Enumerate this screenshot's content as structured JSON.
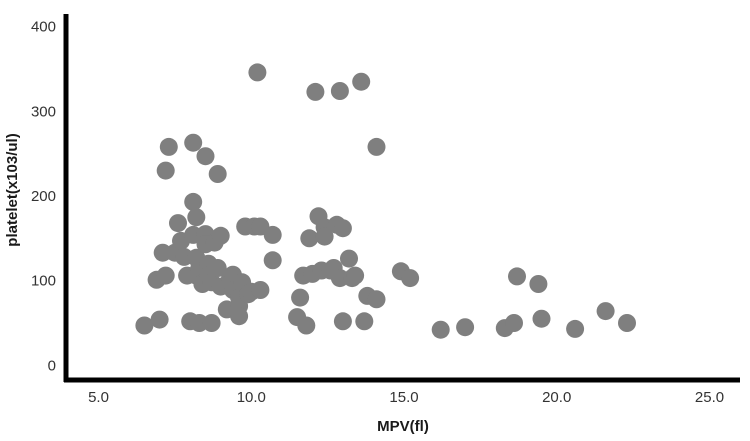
{
  "chart_data": {
    "type": "scatter",
    "xlabel": "MPV(fl)",
    "ylabel": "platelet(x103/ul)",
    "xlim": [
      4.0,
      26.0
    ],
    "ylim": [
      -15,
      415
    ],
    "x_ticks": [
      5.0,
      10.0,
      15.0,
      20.0,
      25.0
    ],
    "x_tick_labels": [
      "5.0",
      "10.0",
      "15.0",
      "20.0",
      "25.0"
    ],
    "y_ticks": [
      0,
      100,
      200,
      300,
      400
    ],
    "y_tick_labels": [
      "0",
      "100",
      "200",
      "300",
      "400"
    ],
    "grid": false,
    "legend": "none",
    "colors": {
      "point": "#7f7f7f",
      "axis": "#000000"
    },
    "points": [
      {
        "x": 6.5,
        "y": 47
      },
      {
        "x": 6.9,
        "y": 101
      },
      {
        "x": 7.0,
        "y": 54
      },
      {
        "x": 7.1,
        "y": 133
      },
      {
        "x": 7.2,
        "y": 106
      },
      {
        "x": 7.2,
        "y": 230
      },
      {
        "x": 7.3,
        "y": 258
      },
      {
        "x": 7.5,
        "y": 133
      },
      {
        "x": 7.6,
        "y": 168
      },
      {
        "x": 7.7,
        "y": 147
      },
      {
        "x": 7.8,
        "y": 128
      },
      {
        "x": 7.9,
        "y": 106
      },
      {
        "x": 8.1,
        "y": 193
      },
      {
        "x": 8.1,
        "y": 154
      },
      {
        "x": 8.1,
        "y": 263
      },
      {
        "x": 8.2,
        "y": 175
      },
      {
        "x": 8.2,
        "y": 127
      },
      {
        "x": 8.2,
        "y": 106
      },
      {
        "x": 8.3,
        "y": 115
      },
      {
        "x": 8.0,
        "y": 52
      },
      {
        "x": 8.3,
        "y": 50
      },
      {
        "x": 8.4,
        "y": 96
      },
      {
        "x": 8.5,
        "y": 155
      },
      {
        "x": 8.5,
        "y": 143
      },
      {
        "x": 8.5,
        "y": 247
      },
      {
        "x": 8.6,
        "y": 120
      },
      {
        "x": 8.6,
        "y": 106
      },
      {
        "x": 8.7,
        "y": 98
      },
      {
        "x": 8.7,
        "y": 50
      },
      {
        "x": 8.8,
        "y": 145
      },
      {
        "x": 8.9,
        "y": 115
      },
      {
        "x": 8.9,
        "y": 226
      },
      {
        "x": 9.0,
        "y": 93
      },
      {
        "x": 9.0,
        "y": 153
      },
      {
        "x": 9.2,
        "y": 66
      },
      {
        "x": 9.3,
        "y": 102
      },
      {
        "x": 9.4,
        "y": 107
      },
      {
        "x": 9.4,
        "y": 89
      },
      {
        "x": 9.6,
        "y": 80
      },
      {
        "x": 9.6,
        "y": 70
      },
      {
        "x": 9.6,
        "y": 58
      },
      {
        "x": 9.7,
        "y": 98
      },
      {
        "x": 9.8,
        "y": 164
      },
      {
        "x": 9.9,
        "y": 84
      },
      {
        "x": 10.0,
        "y": 87
      },
      {
        "x": 10.1,
        "y": 164
      },
      {
        "x": 10.2,
        "y": 346
      },
      {
        "x": 10.3,
        "y": 164
      },
      {
        "x": 10.3,
        "y": 89
      },
      {
        "x": 10.7,
        "y": 154
      },
      {
        "x": 10.7,
        "y": 124
      },
      {
        "x": 11.5,
        "y": 57
      },
      {
        "x": 11.6,
        "y": 80
      },
      {
        "x": 11.7,
        "y": 106
      },
      {
        "x": 11.8,
        "y": 47
      },
      {
        "x": 11.9,
        "y": 150
      },
      {
        "x": 12.0,
        "y": 108
      },
      {
        "x": 12.1,
        "y": 323
      },
      {
        "x": 12.2,
        "y": 176
      },
      {
        "x": 12.3,
        "y": 112
      },
      {
        "x": 12.4,
        "y": 163
      },
      {
        "x": 12.4,
        "y": 152
      },
      {
        "x": 12.6,
        "y": 112
      },
      {
        "x": 12.7,
        "y": 115
      },
      {
        "x": 12.8,
        "y": 166
      },
      {
        "x": 12.9,
        "y": 103
      },
      {
        "x": 13.0,
        "y": 162
      },
      {
        "x": 12.9,
        "y": 324
      },
      {
        "x": 13.0,
        "y": 52
      },
      {
        "x": 13.2,
        "y": 126
      },
      {
        "x": 13.3,
        "y": 103
      },
      {
        "x": 13.4,
        "y": 106
      },
      {
        "x": 13.6,
        "y": 335
      },
      {
        "x": 13.7,
        "y": 52
      },
      {
        "x": 13.8,
        "y": 82
      },
      {
        "x": 14.1,
        "y": 78
      },
      {
        "x": 14.1,
        "y": 258
      },
      {
        "x": 14.9,
        "y": 111
      },
      {
        "x": 15.2,
        "y": 103
      },
      {
        "x": 16.2,
        "y": 42
      },
      {
        "x": 17.0,
        "y": 45
      },
      {
        "x": 18.3,
        "y": 44
      },
      {
        "x": 18.6,
        "y": 50
      },
      {
        "x": 18.7,
        "y": 105
      },
      {
        "x": 19.4,
        "y": 96
      },
      {
        "x": 19.5,
        "y": 55
      },
      {
        "x": 20.6,
        "y": 43
      },
      {
        "x": 21.6,
        "y": 64
      },
      {
        "x": 22.3,
        "y": 50
      }
    ]
  }
}
